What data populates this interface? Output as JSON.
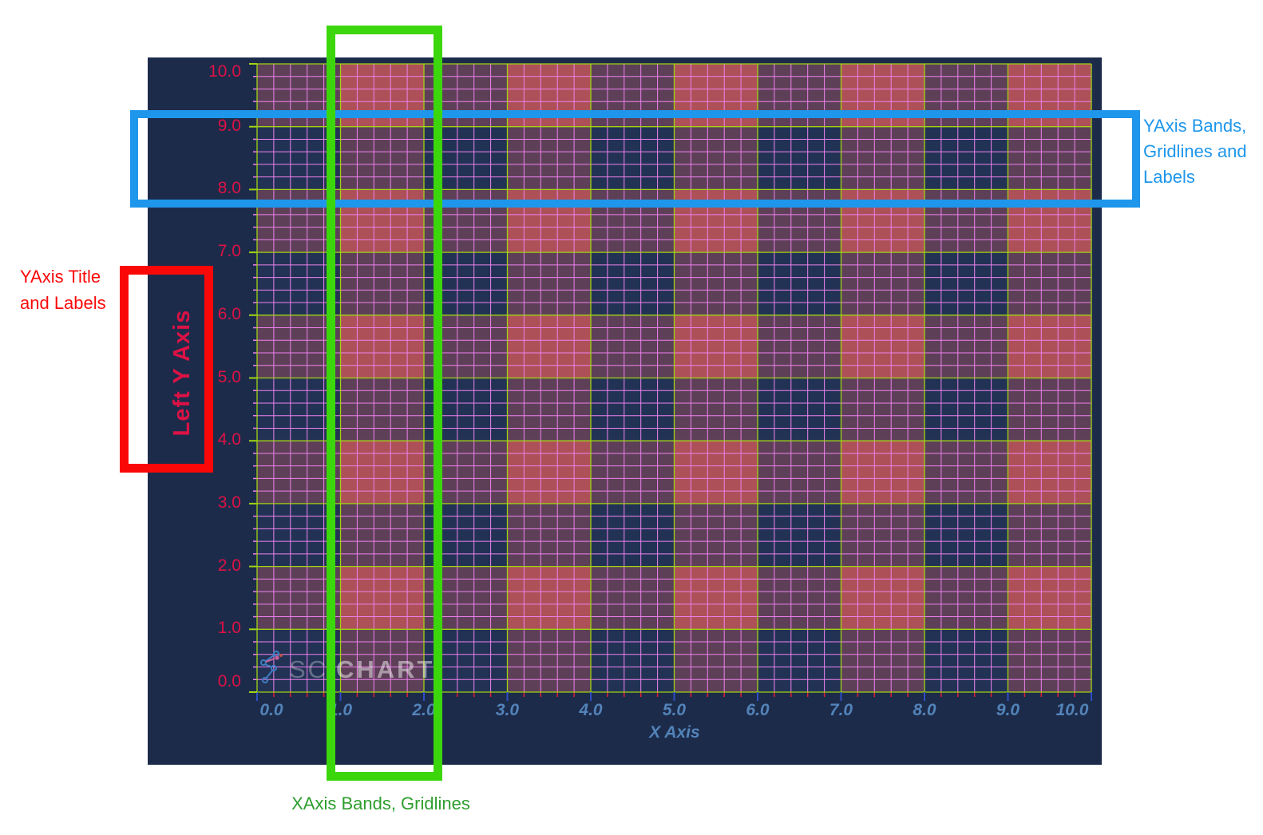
{
  "chart": {
    "background": "#1D2B4B",
    "plot_background": "#223255",
    "watermark": {
      "text_light": "SCi",
      "text_bold": "CHART"
    },
    "x_axis": {
      "title": "X Axis",
      "labels": [
        "0.0",
        "1.0",
        "2.0",
        "3.0",
        "4.0",
        "5.0",
        "6.0",
        "7.0",
        "8.0",
        "9.0",
        "10.0"
      ],
      "label_color": "#5283B8",
      "title_color": "#5283B8",
      "major_tick_color": "#2C4FC4",
      "minor_tick_color": "#E02030"
    },
    "y_axis": {
      "title": "Left Y Axis",
      "labels": [
        "10.0",
        "9.0",
        "8.0",
        "7.0",
        "6.0",
        "5.0",
        "4.0",
        "3.0",
        "2.0",
        "1.0",
        "0.0"
      ],
      "label_color": "#DC1245",
      "title_color": "#DC1245",
      "major_tick_color": "#A0D413",
      "minor_tick_color": "#EE82EE"
    },
    "grid": {
      "x_range": [
        0,
        10
      ],
      "y_range": [
        0,
        10
      ],
      "major_step": 1.0,
      "minor_step": 0.2,
      "major_color": "#A0D413",
      "minor_color": "#EE82EE",
      "x_bands": [
        [
          1,
          2
        ],
        [
          3,
          4
        ],
        [
          5,
          6
        ],
        [
          7,
          8
        ],
        [
          9,
          10
        ]
      ],
      "y_bands": [
        [
          1,
          2
        ],
        [
          3,
          4
        ],
        [
          5,
          6
        ],
        [
          7,
          8
        ],
        [
          9,
          10
        ]
      ],
      "band_single_color": "#5E3F58",
      "band_double_color": "#AE5058"
    }
  },
  "annotations": {
    "boxes": {
      "blue_color": "#1E96EB",
      "red_color": "#FA0808",
      "green_color": "#3CD60C"
    },
    "yaxis_bands_note": {
      "lines": [
        "YAxis Bands,",
        "Gridlines and",
        "Labels"
      ],
      "color": "#1E96EB"
    },
    "yaxis_title_note": {
      "lines": [
        "YAxis Title",
        "and Labels"
      ],
      "color": "#FA0808"
    },
    "xaxis_bands_note": {
      "text": "XAxis Bands, Gridlines",
      "color": "#2E9E2E"
    }
  },
  "chart_data": {
    "type": "heatmap",
    "title": "",
    "xlabel": "X Axis",
    "ylabel": "Left Y Axis",
    "xlim": [
      0,
      10
    ],
    "ylim": [
      0,
      10
    ],
    "x_tick_labels": [
      "0.0",
      "1.0",
      "2.0",
      "3.0",
      "4.0",
      "5.0",
      "6.0",
      "7.0",
      "8.0",
      "9.0",
      "10.0"
    ],
    "y_tick_labels": [
      "0.0",
      "1.0",
      "2.0",
      "3.0",
      "4.0",
      "5.0",
      "6.0",
      "7.0",
      "8.0",
      "9.0",
      "10.0"
    ],
    "major_grid_step": 1.0,
    "minor_grid_step": 0.2,
    "grid": "on",
    "legend": "none",
    "series": [],
    "x_axis_bands": [
      [
        1,
        2
      ],
      [
        3,
        4
      ],
      [
        5,
        6
      ],
      [
        7,
        8
      ],
      [
        9,
        10
      ]
    ],
    "y_axis_bands": [
      [
        1,
        2
      ],
      [
        3,
        4
      ],
      [
        5,
        6
      ],
      [
        7,
        8
      ],
      [
        9,
        10
      ]
    ]
  }
}
